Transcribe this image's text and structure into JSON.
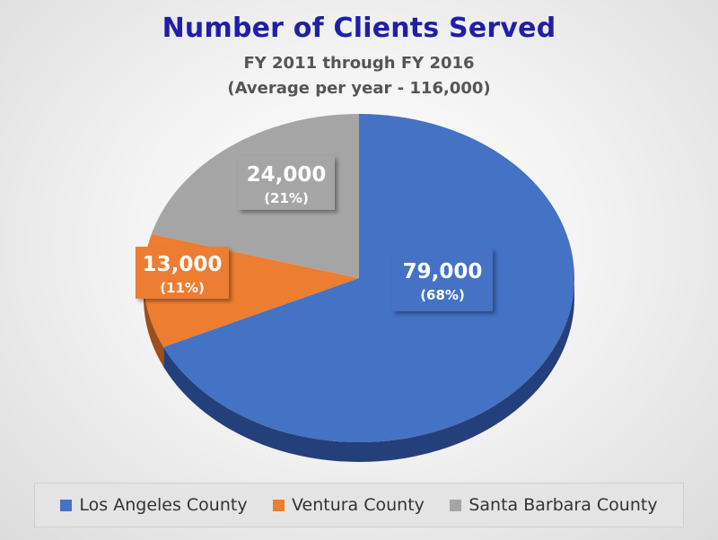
{
  "chart_data": {
    "type": "pie",
    "title": "Number of Clients Served",
    "subtitle": [
      "FY 2011 through FY 2016",
      "(Average per year - 116,000)"
    ],
    "slices": [
      {
        "name": "Los Angeles County",
        "value": 79000,
        "value_label": "79,000",
        "percent_label": "(68%)",
        "color": "#4472c4",
        "side_color": "#24407a"
      },
      {
        "name": "Ventura County",
        "value": 13000,
        "value_label": "13,000",
        "percent_label": "(11%)",
        "color": "#ed7d31",
        "side_color": "#9a4f1d"
      },
      {
        "name": "Santa Barbara County",
        "value": 24000,
        "value_label": "24,000",
        "percent_label": "(21%)",
        "color": "#a5a5a5",
        "side_color": "#6e6e6e"
      }
    ],
    "legend_position": "bottom"
  }
}
